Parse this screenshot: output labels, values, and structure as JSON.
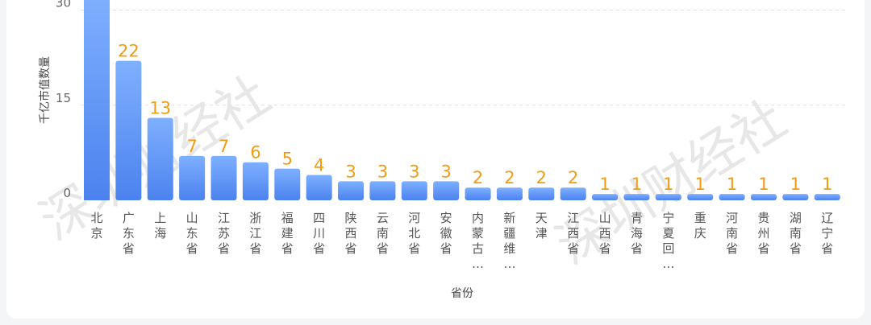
{
  "chart_data": {
    "type": "bar",
    "xlabel": "省份",
    "ylabel": "千亿市值数量",
    "ylim": [
      0,
      34
    ],
    "yticks": [
      0,
      15,
      30
    ],
    "grid": true,
    "watermark": "深圳财经社",
    "colors": {
      "bar_top": "#7eb0ff",
      "bar_bottom": "#4b82ee",
      "value_label": "#f39c12",
      "grid": "#e0e0e0"
    },
    "categories": [
      "北京",
      "广东省",
      "上海",
      "山东省",
      "江苏省",
      "浙江省",
      "福建省",
      "四川省",
      "陕西省",
      "云南省",
      "河北省",
      "安徽省",
      "内蒙古…",
      "新疆维…",
      "天津",
      "江西省",
      "山西省",
      "青海省",
      "宁夏回…",
      "重庆",
      "河南省",
      "贵州省",
      "湖南省",
      "辽宁省"
    ],
    "values": [
      null,
      22,
      13,
      7,
      7,
      6,
      5,
      4,
      3,
      3,
      3,
      3,
      2,
      2,
      2,
      2,
      1,
      1,
      1,
      1,
      1,
      1,
      1,
      1
    ],
    "value_labels": [
      "",
      "22",
      "13",
      "7",
      "7",
      "6",
      "5",
      "4",
      "3",
      "3",
      "3",
      "3",
      "2",
      "2",
      "2",
      "2",
      "1",
      "1",
      "1",
      "1",
      "1",
      "1",
      "1",
      "1"
    ]
  }
}
